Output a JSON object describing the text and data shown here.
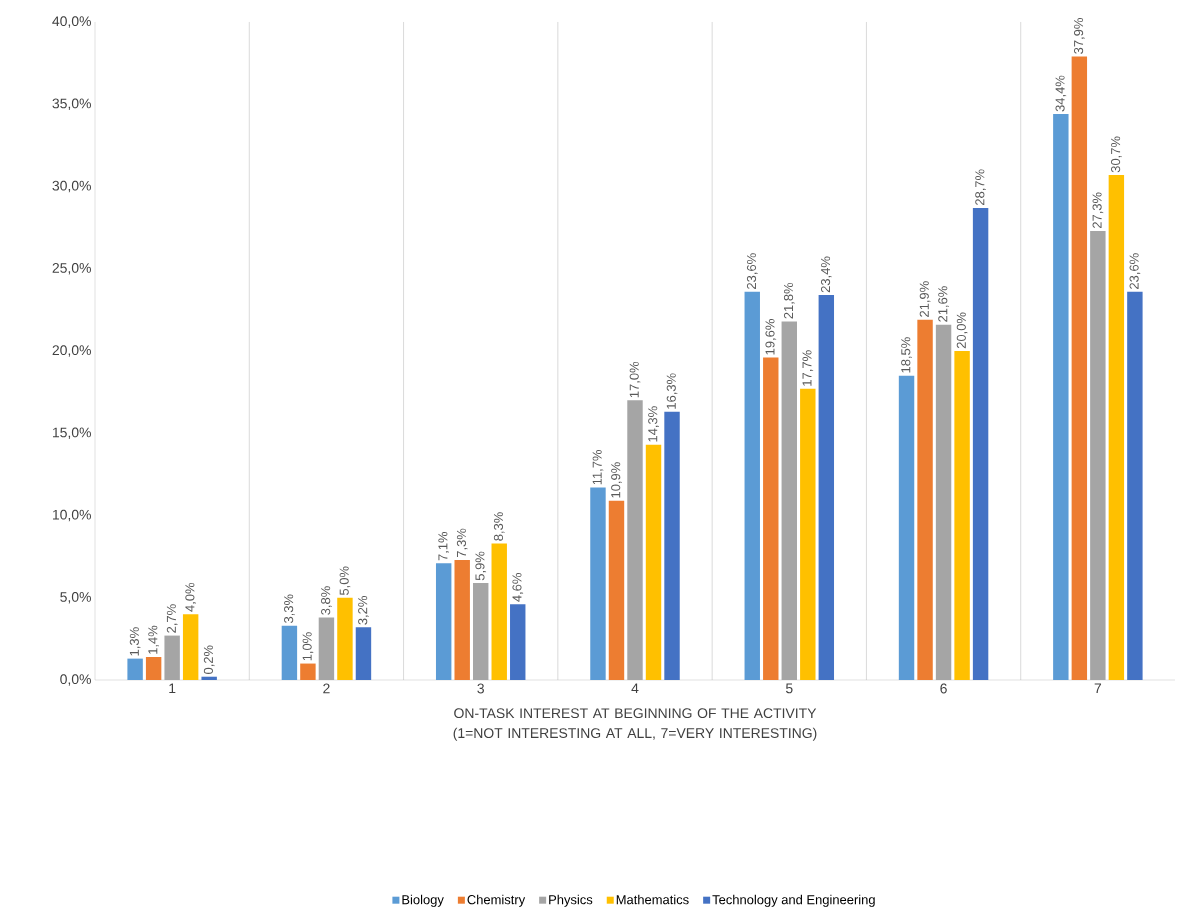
{
  "chart_data": {
    "type": "bar",
    "categories": [
      "1",
      "2",
      "3",
      "4",
      "5",
      "6",
      "7"
    ],
    "xlabel": "ON-TASK INTEREST AT BEGINNING OF THE ACTIVITY (1=NOT INTERESTING AT ALL, 7=VERY INTERESTING)",
    "series": [
      {
        "name": "Biology",
        "color": "#5b9bd5",
        "values": [
          1.3,
          3.3,
          7.1,
          11.7,
          23.6,
          18.5,
          34.4
        ],
        "value_labels": [
          "1,3%",
          "3,3%",
          "7,1%",
          "11,7%",
          "23,6%",
          "18,5%",
          "34,4%"
        ]
      },
      {
        "name": "Chemistry",
        "color": "#ed7d31",
        "values": [
          1.4,
          1.0,
          7.3,
          10.9,
          19.6,
          21.9,
          37.9
        ],
        "value_labels": [
          "1,4%",
          "1,0%",
          "7,3%",
          "10,9%",
          "19,6%",
          "21,9%",
          "37,9%"
        ]
      },
      {
        "name": "Physics",
        "color": "#a5a5a5",
        "values": [
          2.7,
          3.8,
          5.9,
          17.0,
          21.8,
          21.6,
          27.3
        ],
        "value_labels": [
          "2,7%",
          "3,8%",
          "5,9%",
          "17,0%",
          "21,8%",
          "21,6%",
          "27,3%"
        ]
      },
      {
        "name": "Mathematics",
        "color": "#ffc000",
        "values": [
          4.0,
          5.0,
          8.3,
          14.3,
          17.7,
          20.0,
          30.7
        ],
        "value_labels": [
          "4,0%",
          "5,0%",
          "8,3%",
          "14,3%",
          "17,7%",
          "20,0%",
          "30,7%"
        ]
      },
      {
        "name": "Technology and Engineering",
        "color": "#4472c4",
        "values": [
          0.2,
          3.2,
          4.6,
          16.3,
          23.4,
          28.7,
          23.6
        ],
        "value_labels": [
          "0,2%",
          "3,2%",
          "4,6%",
          "16,3%",
          "23,4%",
          "28,7%",
          "23,6%"
        ]
      }
    ],
    "ylim": [
      0,
      40
    ],
    "yticks": [
      {
        "value": 0,
        "label": "0,0%"
      },
      {
        "value": 5,
        "label": "5,0%"
      },
      {
        "value": 10,
        "label": "10,0%"
      },
      {
        "value": 15,
        "label": "15,0%"
      },
      {
        "value": 20,
        "label": "20,0%"
      },
      {
        "value": 25,
        "label": "25,0%"
      },
      {
        "value": 30,
        "label": "30,0%"
      },
      {
        "value": 35,
        "label": "35,0%"
      },
      {
        "value": 40,
        "label": "40,0%"
      }
    ],
    "grid": "x",
    "legend": "bottom"
  }
}
